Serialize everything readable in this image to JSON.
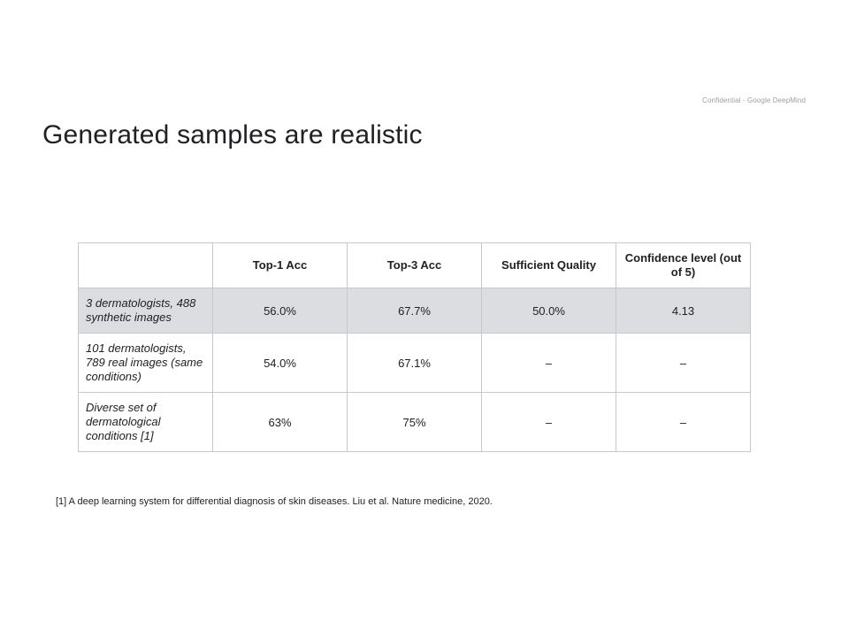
{
  "header": {
    "confidential": "Confidential - Google DeepMind",
    "title": "Generated samples are realistic"
  },
  "table": {
    "headers": [
      "",
      "Top-1 Acc",
      "Top-3 Acc",
      "Sufficient Quality",
      "Confidence level (out of 5)"
    ],
    "rows": [
      {
        "label": "3 dermatologists, 488 synthetic images",
        "values": [
          "56.0%",
          "67.7%",
          "50.0%",
          "4.13"
        ],
        "highlighted": true
      },
      {
        "label": "101 dermatologists, 789 real images (same conditions)",
        "values": [
          "54.0%",
          "67.1%",
          "–",
          "–"
        ],
        "highlighted": false
      },
      {
        "label": "Diverse set of dermatological conditions [1]",
        "values": [
          "63%",
          "75%",
          "–",
          "–"
        ],
        "highlighted": false
      }
    ],
    "colors": {
      "highlight": "#dcdde0",
      "border": "#c6c8cc"
    }
  },
  "footnote": "[1] A deep learning system for differential diagnosis of skin diseases. Liu et al. Nature medicine, 2020."
}
